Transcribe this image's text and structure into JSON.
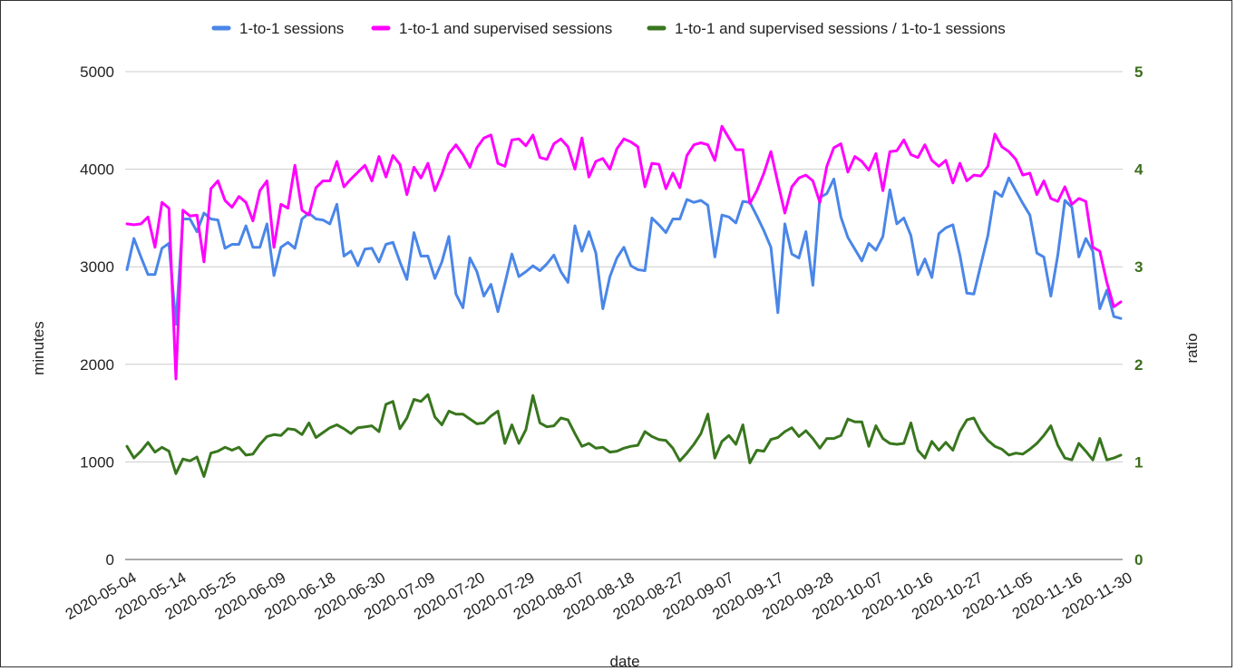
{
  "chart_data": {
    "type": "line",
    "title": "",
    "xlabel": "date",
    "ylabel": "minutes",
    "y2label": "ratio",
    "ylim": [
      0,
      5000
    ],
    "y2lim": [
      0,
      5
    ],
    "yticks": [
      "0",
      "1000",
      "2000",
      "3000",
      "4000",
      "5000"
    ],
    "y2ticks": [
      "0",
      "1",
      "2",
      "3",
      "4",
      "5"
    ],
    "xticks": [
      "2020-05-04",
      "2020-05-14",
      "2020-05-25",
      "2020-06-09",
      "2020-06-18",
      "2020-06-30",
      "2020-07-09",
      "2020-07-20",
      "2020-07-29",
      "2020-08-07",
      "2020-08-18",
      "2020-08-27",
      "2020-09-07",
      "2020-09-17",
      "2020-09-28",
      "2020-10-07",
      "2020-10-16",
      "2020-10-27",
      "2020-11-05",
      "2020-11-16",
      "2020-11-30"
    ],
    "grid": true,
    "legend_position": "top",
    "series": [
      {
        "name": "1-to-1 sessions",
        "axis": "left",
        "color": "#4a86e8",
        "values": [
          2970,
          3290,
          3100,
          2920,
          2920,
          3190,
          3240,
          2410,
          3490,
          3490,
          3360,
          3550,
          3490,
          3480,
          3190,
          3230,
          3230,
          3420,
          3200,
          3200,
          3440,
          2910,
          3200,
          3250,
          3190,
          3490,
          3550,
          3490,
          3480,
          3440,
          3640,
          3110,
          3160,
          3010,
          3180,
          3190,
          3050,
          3230,
          3250,
          3050,
          2870,
          3350,
          3110,
          3110,
          2880,
          3050,
          3310,
          2720,
          2580,
          3090,
          2950,
          2700,
          2820,
          2540,
          2830,
          3130,
          2900,
          2950,
          3010,
          2960,
          3030,
          3120,
          2950,
          2840,
          3420,
          3160,
          3360,
          3140,
          2570,
          2900,
          3090,
          3200,
          3010,
          2970,
          2960,
          3500,
          3430,
          3350,
          3490,
          3490,
          3690,
          3660,
          3680,
          3630,
          3100,
          3530,
          3510,
          3450,
          3670,
          3660,
          3520,
          3370,
          3200,
          2530,
          3440,
          3130,
          3090,
          3360,
          2810,
          3710,
          3750,
          3900,
          3510,
          3300,
          3180,
          3060,
          3240,
          3170,
          3310,
          3790,
          3440,
          3500,
          3320,
          2920,
          3080,
          2890,
          3340,
          3400,
          3430,
          3120,
          2730,
          2720,
          3020,
          3320,
          3770,
          3720,
          3910,
          3780,
          3650,
          3530,
          3140,
          3100,
          2700,
          3120,
          3680,
          3610,
          3100,
          3290,
          3160,
          2570,
          2760,
          2490,
          2470
        ]
      },
      {
        "name": "1-to-1 and supervised sessions",
        "axis": "left",
        "color": "#ff00ff",
        "values": [
          3440,
          3430,
          3440,
          3510,
          3200,
          3660,
          3600,
          1850,
          3580,
          3520,
          3530,
          3050,
          3800,
          3880,
          3680,
          3610,
          3720,
          3660,
          3470,
          3780,
          3880,
          3200,
          3640,
          3600,
          4040,
          3580,
          3530,
          3810,
          3880,
          3880,
          4080,
          3820,
          3900,
          3970,
          4040,
          3880,
          4130,
          3920,
          4140,
          4050,
          3740,
          4020,
          3910,
          4060,
          3780,
          3950,
          4160,
          4250,
          4150,
          4020,
          4220,
          4320,
          4350,
          4060,
          4030,
          4300,
          4310,
          4240,
          4350,
          4120,
          4100,
          4260,
          4310,
          4230,
          4000,
          4320,
          3920,
          4080,
          4110,
          4000,
          4210,
          4310,
          4280,
          4230,
          3820,
          4060,
          4050,
          3800,
          3960,
          3810,
          4140,
          4250,
          4270,
          4250,
          4090,
          4440,
          4320,
          4200,
          4200,
          3650,
          3780,
          3960,
          4180,
          3860,
          3550,
          3820,
          3910,
          3940,
          3880,
          3660,
          4030,
          4220,
          4260,
          3970,
          4130,
          4080,
          3990,
          4160,
          3780,
          4180,
          4190,
          4300,
          4150,
          4120,
          4250,
          4090,
          4030,
          4090,
          3860,
          4060,
          3880,
          3940,
          3930,
          4030,
          4360,
          4230,
          4180,
          4100,
          3940,
          3960,
          3740,
          3880,
          3700,
          3670,
          3820,
          3640,
          3700,
          3670,
          3200,
          3160,
          2840,
          2590,
          2640
        ]
      },
      {
        "name": "1-to-1 and supervised sessions / 1-to-1 sessions",
        "axis": "right",
        "color": "#38761d",
        "values": [
          1.16,
          1.04,
          1.11,
          1.2,
          1.1,
          1.15,
          1.11,
          0.88,
          1.03,
          1.01,
          1.05,
          0.85,
          1.09,
          1.11,
          1.15,
          1.12,
          1.15,
          1.07,
          1.08,
          1.18,
          1.26,
          1.28,
          1.27,
          1.34,
          1.33,
          1.28,
          1.4,
          1.25,
          1.3,
          1.35,
          1.38,
          1.34,
          1.29,
          1.35,
          1.36,
          1.37,
          1.31,
          1.59,
          1.62,
          1.34,
          1.45,
          1.64,
          1.62,
          1.69,
          1.46,
          1.38,
          1.52,
          1.49,
          1.49,
          1.44,
          1.39,
          1.4,
          1.47,
          1.52,
          1.19,
          1.38,
          1.19,
          1.33,
          1.68,
          1.4,
          1.36,
          1.37,
          1.45,
          1.43,
          1.29,
          1.16,
          1.19,
          1.14,
          1.15,
          1.1,
          1.11,
          1.14,
          1.16,
          1.17,
          1.31,
          1.26,
          1.23,
          1.22,
          1.14,
          1.01,
          1.09,
          1.18,
          1.29,
          1.49,
          1.04,
          1.21,
          1.27,
          1.18,
          1.38,
          0.99,
          1.12,
          1.11,
          1.23,
          1.25,
          1.31,
          1.35,
          1.26,
          1.32,
          1.24,
          1.14,
          1.24,
          1.24,
          1.27,
          1.44,
          1.41,
          1.41,
          1.16,
          1.37,
          1.24,
          1.19,
          1.18,
          1.19,
          1.4,
          1.12,
          1.04,
          1.21,
          1.12,
          1.2,
          1.12,
          1.31,
          1.43,
          1.45,
          1.31,
          1.22,
          1.16,
          1.13,
          1.07,
          1.09,
          1.08,
          1.13,
          1.19,
          1.27,
          1.37,
          1.17,
          1.04,
          1.02,
          1.19,
          1.11,
          1.02,
          1.24,
          1.02,
          1.04,
          1.07
        ]
      }
    ]
  }
}
